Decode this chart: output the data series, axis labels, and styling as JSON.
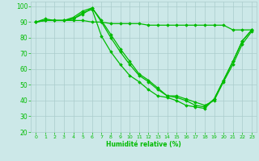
{
  "xlabel": "Humidité relative (%)",
  "bg_color": "#cce8e8",
  "grid_color": "#aacccc",
  "line_color": "#00bb00",
  "xlim": [
    -0.5,
    23.5
  ],
  "ylim": [
    20,
    103
  ],
  "yticks": [
    20,
    30,
    40,
    50,
    60,
    70,
    80,
    90,
    100
  ],
  "xticks": [
    0,
    1,
    2,
    3,
    4,
    5,
    6,
    7,
    8,
    9,
    10,
    11,
    12,
    13,
    14,
    15,
    16,
    17,
    18,
    19,
    20,
    21,
    22,
    23
  ],
  "series": [
    [
      90,
      92,
      91,
      91,
      91,
      91,
      90,
      90,
      89,
      89,
      89,
      89,
      88,
      88,
      88,
      88,
      88,
      88,
      88,
      88,
      88,
      85,
      85,
      85
    ],
    [
      90,
      91,
      91,
      91,
      92,
      95,
      99,
      90,
      80,
      71,
      63,
      56,
      52,
      47,
      43,
      42,
      40,
      37,
      36,
      41,
      53,
      65,
      78,
      85
    ],
    [
      90,
      91,
      91,
      91,
      92,
      96,
      98,
      81,
      71,
      63,
      56,
      52,
      47,
      43,
      42,
      40,
      37,
      36,
      35,
      41,
      53,
      65,
      78,
      85
    ],
    [
      90,
      91,
      91,
      91,
      93,
      97,
      99,
      91,
      82,
      73,
      65,
      57,
      53,
      48,
      43,
      43,
      41,
      39,
      37,
      40,
      52,
      63,
      76,
      84
    ]
  ]
}
